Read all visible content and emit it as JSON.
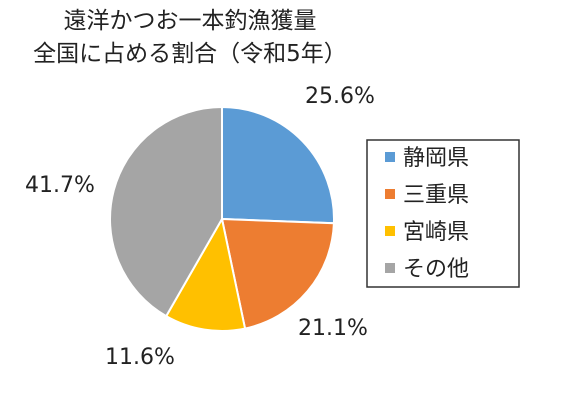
{
  "chart_data": {
    "type": "pie",
    "title": [
      "遠洋かつお一本釣漁獲量",
      "全国に占める割合（令和5年）"
    ],
    "categories": [
      "静岡県",
      "三重県",
      "宮崎県",
      "その他"
    ],
    "values": [
      25.6,
      21.1,
      11.6,
      41.7
    ],
    "data_labels": [
      "25.6%",
      "21.1%",
      "11.6%",
      "41.7%"
    ],
    "colors": [
      "#5b9bd5",
      "#ed7d31",
      "#ffc000",
      "#a5a5a5"
    ],
    "legend": "right",
    "start_angle_deg": 0,
    "direction": "clockwise"
  }
}
